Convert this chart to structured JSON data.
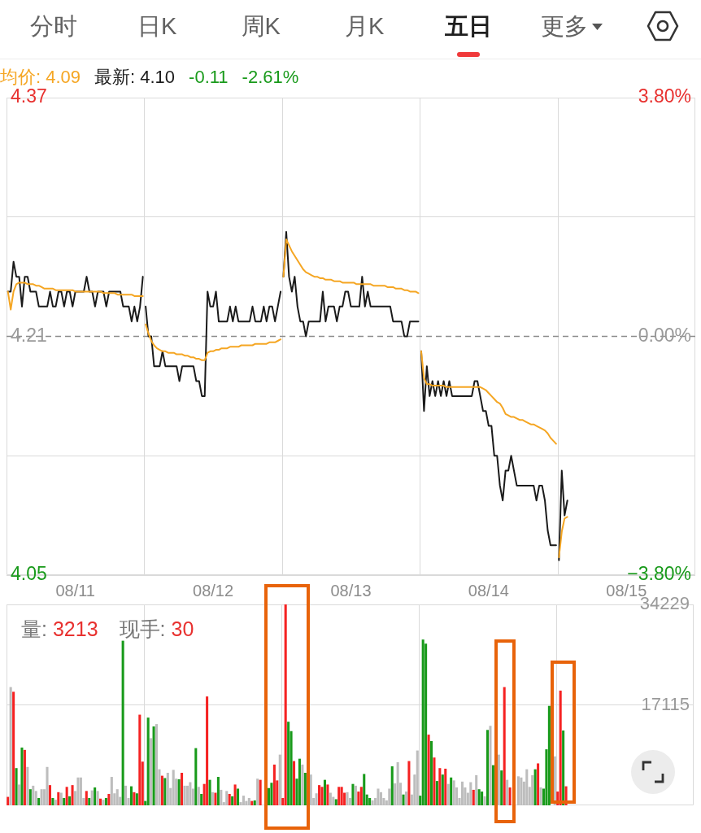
{
  "chart_data": [
    {
      "type": "other",
      "annotations": [
        "分时",
        "日K",
        "周K",
        "月K",
        "五日",
        "更多"
      ]
    },
    {
      "type": "line",
      "categories": [
        null,
        null,
        null,
        null,
        null,
        null,
        null,
        null,
        null,
        null,
        null,
        null,
        null,
        null,
        null,
        null,
        null,
        null,
        null,
        null,
        null,
        null,
        null,
        null,
        "08/11",
        null,
        null,
        null,
        null,
        null,
        null,
        null,
        null,
        null,
        null,
        null,
        null,
        null,
        null,
        null,
        null,
        null,
        null,
        null,
        null,
        null,
        null,
        null,
        null,
        null,
        null,
        null,
        null,
        null,
        null,
        null,
        null,
        null,
        null,
        null,
        null,
        null,
        null,
        null,
        null,
        null,
        null,
        null,
        null,
        null,
        null,
        null,
        null,
        "08/12",
        null,
        null,
        null,
        null,
        null,
        null,
        null,
        null,
        null,
        null,
        null,
        null,
        null,
        null,
        null,
        null,
        null,
        null,
        null,
        null,
        null,
        null,
        null,
        null,
        null,
        null,
        null,
        null,
        null,
        null,
        null,
        null,
        null,
        null,
        null,
        null,
        null,
        null,
        null,
        null,
        null,
        null,
        null,
        null,
        null,
        null,
        null,
        null,
        "08/13",
        null,
        null,
        null,
        null,
        null,
        null,
        null,
        null,
        null,
        null,
        null,
        null,
        null,
        null,
        null,
        null,
        null,
        null,
        null,
        null,
        null,
        null,
        null,
        null,
        null,
        null,
        null,
        null,
        null,
        null,
        null,
        null,
        null,
        null,
        null,
        null,
        null,
        null,
        null,
        null,
        null,
        null,
        null,
        null,
        null,
        null,
        null,
        null,
        "08/14",
        null,
        null,
        null,
        null,
        null,
        null,
        null,
        null,
        null,
        null,
        null,
        null,
        null,
        null,
        null,
        null,
        null,
        null,
        null,
        null,
        null,
        null,
        null,
        null,
        null,
        null,
        null,
        null,
        null,
        null,
        null,
        null,
        null,
        null,
        null,
        null,
        null,
        null,
        null,
        null,
        null,
        null,
        null,
        null,
        null,
        null,
        null,
        null,
        "08/15",
        null,
        null,
        null,
        null,
        null,
        null,
        null,
        null,
        null,
        null,
        null,
        null,
        null,
        null,
        null,
        null,
        null,
        null,
        null,
        null,
        null,
        null,
        null,
        null
      ],
      "series": [
        {
          "name": "均价: 4.09",
          "color": "#f5a623",
          "values": [
            4.24,
            4.228,
            4.24,
            4.245,
            4.246,
            4.246,
            4.246,
            4.245,
            4.245,
            4.245,
            4.244,
            4.244,
            4.243,
            4.242,
            4.242,
            4.242,
            4.242,
            4.241,
            4.241,
            4.241,
            4.241,
            4.241,
            4.241,
            4.241,
            4.24,
            4.24,
            4.24,
            4.24,
            4.24,
            4.24,
            4.24,
            4.24,
            4.24,
            4.24,
            4.239,
            4.239,
            4.239,
            4.239,
            4.239,
            4.238,
            4.238,
            4.238,
            4.238,
            4.238,
            4.238,
            4.237,
            4.237,
            4.237,
            4.237,
            4.218,
            4.212,
            4.207,
            4.204,
            4.202,
            4.201,
            4.2,
            4.2,
            4.199,
            4.199,
            4.199,
            4.198,
            4.198,
            4.198,
            4.197,
            4.197,
            4.196,
            4.196,
            4.195,
            4.195,
            4.194,
            4.194,
            4.199,
            4.2,
            4.2,
            4.201,
            4.201,
            4.202,
            4.202,
            4.202,
            4.203,
            4.203,
            4.203,
            4.203,
            4.204,
            4.204,
            4.204,
            4.204,
            4.204,
            4.205,
            4.205,
            4.205,
            4.205,
            4.205,
            4.206,
            4.206,
            4.206,
            4.207,
            4.208,
            4.25,
            4.275,
            4.271,
            4.267,
            4.264,
            4.261,
            4.258,
            4.255,
            4.253,
            4.252,
            4.251,
            4.25,
            4.25,
            4.249,
            4.249,
            4.248,
            4.248,
            4.248,
            4.247,
            4.247,
            4.247,
            4.246,
            4.246,
            4.246,
            4.246,
            4.246,
            4.245,
            4.245,
            4.245,
            4.245,
            4.245,
            4.245,
            4.244,
            4.244,
            4.244,
            4.244,
            4.244,
            4.243,
            4.243,
            4.243,
            4.242,
            4.242,
            4.242,
            4.241,
            4.241,
            4.24,
            4.24,
            4.24,
            4.239,
            4.2,
            4.182,
            4.178,
            4.178,
            4.177,
            4.177,
            4.177,
            4.177,
            4.177,
            4.176,
            4.176,
            4.176,
            4.176,
            4.176,
            4.176,
            4.176,
            4.176,
            4.176,
            4.176,
            4.176,
            4.176,
            4.176,
            4.175,
            4.174,
            4.172,
            4.17,
            4.168,
            4.166,
            4.165,
            4.162,
            4.158,
            4.157,
            4.156,
            4.156,
            4.155,
            4.154,
            4.154,
            4.153,
            4.152,
            4.151,
            4.151,
            4.15,
            4.149,
            4.148,
            4.147,
            4.145,
            4.142,
            4.14,
            4.138,
            4.062,
            4.079,
            4.088,
            4.089,
            null,
            null,
            null,
            null,
            null,
            null,
            null,
            null,
            null,
            null,
            null,
            null,
            null,
            null,
            null,
            null,
            null,
            null,
            null,
            null,
            null,
            null,
            null,
            null,
            null,
            null,
            null,
            null,
            null,
            null,
            null,
            null,
            null,
            null,
            null,
            null,
            null,
            null,
            null,
            null,
            null,
            null,
            null,
            null,
            null
          ]
        },
        {
          "name": "最新: 4.10",
          "color": "#1a1a1a",
          "values": [
            4.24,
            4.24,
            4.26,
            4.25,
            4.25,
            4.23,
            4.25,
            4.25,
            4.24,
            4.24,
            4.24,
            4.23,
            4.23,
            4.23,
            4.23,
            4.24,
            4.23,
            4.23,
            4.24,
            4.24,
            4.23,
            4.24,
            4.24,
            4.23,
            4.24,
            4.24,
            4.24,
            4.24,
            4.25,
            4.24,
            4.24,
            4.23,
            4.24,
            4.24,
            4.24,
            4.23,
            4.24,
            4.24,
            4.24,
            4.24,
            4.24,
            4.23,
            4.23,
            4.23,
            4.22,
            4.23,
            4.22,
            4.23,
            4.25,
            4.23,
            4.21,
            4.21,
            4.19,
            4.19,
            4.19,
            4.2,
            4.19,
            4.19,
            4.19,
            4.19,
            4.19,
            4.18,
            4.19,
            4.19,
            4.19,
            4.19,
            4.19,
            4.18,
            4.18,
            4.17,
            4.17,
            4.24,
            4.23,
            4.23,
            4.24,
            4.22,
            4.22,
            4.22,
            4.22,
            4.23,
            4.22,
            4.23,
            4.22,
            4.22,
            4.22,
            4.22,
            4.22,
            4.23,
            4.22,
            4.22,
            4.22,
            4.23,
            4.22,
            4.23,
            4.23,
            4.22,
            4.23,
            4.24,
            4.25,
            4.28,
            4.25,
            4.24,
            4.25,
            4.23,
            4.22,
            4.22,
            4.21,
            4.22,
            4.22,
            4.22,
            4.22,
            4.22,
            4.24,
            4.22,
            4.23,
            4.23,
            4.23,
            4.22,
            4.23,
            4.23,
            4.24,
            4.24,
            4.23,
            4.23,
            4.23,
            4.23,
            4.25,
            4.23,
            4.24,
            4.23,
            4.23,
            4.23,
            4.23,
            4.23,
            4.23,
            4.23,
            4.23,
            4.22,
            4.22,
            4.22,
            4.22,
            4.21,
            4.21,
            4.22,
            4.22,
            4.22,
            4.22,
            4.2,
            4.16,
            4.19,
            4.17,
            4.18,
            4.17,
            4.18,
            4.17,
            4.18,
            4.17,
            4.18,
            4.17,
            4.17,
            4.17,
            4.17,
            4.17,
            4.17,
            4.17,
            4.17,
            4.18,
            4.18,
            4.17,
            4.16,
            4.16,
            4.15,
            4.15,
            4.13,
            4.13,
            4.11,
            4.1,
            4.12,
            4.12,
            4.13,
            4.12,
            4.11,
            4.11,
            4.11,
            4.11,
            4.11,
            4.11,
            4.11,
            4.1,
            4.11,
            4.11,
            4.1,
            4.08,
            4.07,
            4.07,
            4.07,
            4.06,
            4.12,
            4.09,
            4.1,
            null,
            null,
            null,
            null,
            null,
            null,
            null,
            null,
            null,
            null,
            null,
            null,
            null,
            null,
            null,
            null,
            null,
            null,
            null,
            null,
            null,
            null,
            null,
            null,
            null,
            null,
            null,
            null,
            null,
            null,
            null,
            null,
            null,
            null,
            null,
            null,
            null,
            null,
            null,
            null,
            null,
            null,
            null,
            null,
            null
          ]
        }
      ],
      "ylim": [
        4.05,
        4.37
      ],
      "yticks": [
        4.05,
        {
          "value": 4.13,
          "label": null
        },
        4.21,
        {
          "value": 4.29,
          "label": null
        },
        4.37
      ],
      "y2lim": [
        -3.8,
        3.8
      ],
      "y2ticks": [
        {
          "value": -3.8,
          "label": "−3.80%"
        },
        {
          "value": 0,
          "label": "0.00%"
        },
        {
          "value": 3.8,
          "label": "3.80%"
        }
      ],
      "ref_lines": [
        {
          "axis": "y",
          "value": 4.21,
          "line_style": "dashed",
          "color": "#8c8c8c"
        }
      ],
      "annotations": [
        "-0.11",
        "-2.61%"
      ],
      "legend": "top left",
      "grid": true
    },
    {
      "type": "bar",
      "categories": [
        null,
        null,
        null,
        null,
        null,
        null,
        null,
        null,
        null,
        null,
        null,
        null,
        null,
        null,
        null,
        null,
        null,
        null,
        null,
        null,
        null,
        null,
        null,
        null,
        null,
        null,
        null,
        null,
        null,
        null,
        null,
        null,
        null,
        null,
        null,
        null,
        null,
        null,
        null,
        null,
        null,
        null,
        null,
        null,
        null,
        null,
        null,
        null,
        null,
        null,
        null,
        null,
        null,
        null,
        null,
        null,
        null,
        null,
        null,
        null,
        null,
        null,
        null,
        null,
        null,
        null,
        null,
        null,
        null,
        null,
        null,
        null,
        null,
        null,
        null,
        null,
        null,
        null,
        null,
        null,
        null,
        null,
        null,
        null,
        null,
        null,
        null,
        null,
        null,
        null,
        null,
        null,
        null,
        null,
        null,
        null,
        null,
        null,
        null,
        null,
        null,
        null,
        null,
        null,
        null,
        null,
        null,
        null,
        null,
        null,
        null,
        null,
        null,
        null,
        null,
        null,
        null,
        null,
        null,
        null,
        null,
        null,
        null,
        null,
        null,
        null,
        null,
        null,
        null,
        null,
        null,
        null,
        null,
        null,
        null,
        null,
        null,
        null,
        null,
        null,
        null,
        null,
        null,
        null,
        null,
        null,
        null,
        null,
        null,
        null,
        null,
        null,
        null,
        null,
        null,
        null,
        null,
        null,
        null,
        null,
        null,
        null,
        null,
        null,
        null,
        null,
        null,
        null,
        null,
        null,
        null,
        null,
        null,
        null,
        null,
        null,
        null,
        null,
        null,
        null,
        null,
        null,
        null,
        null,
        null,
        null,
        null,
        null,
        null,
        null,
        null,
        null,
        null,
        null,
        null,
        null,
        null,
        null,
        null,
        null,
        null,
        null,
        null,
        null,
        null,
        null,
        null,
        null,
        null,
        null,
        null,
        null,
        null,
        null,
        null,
        null,
        null,
        null,
        null,
        null,
        null,
        null,
        null,
        null,
        null,
        null,
        null,
        null,
        null,
        null,
        null,
        null,
        null,
        null,
        null,
        null,
        null,
        null,
        null,
        null,
        null,
        null,
        null,
        null,
        null
      ],
      "series": [
        {
          "values": [
            1400,
            20100,
            19300,
            6300,
            3500,
            9800,
            9400,
            6500,
            2700,
            3300,
            2400,
            1200,
            2700,
            2700,
            6500,
            3400,
            1200,
            900,
            2200,
            2100,
            1200,
            3100,
            1500,
            3400,
            2400,
            4700,
            4700,
            1200,
            2400,
            1200,
            2500,
            3000,
            2400,
            1100,
            900,
            1200,
            1900,
            4800,
            2000,
            2700,
            1400,
            28000,
            3300,
            1200,
            3200,
            2200,
            2000,
            15400,
            7400,
            700,
            14900,
            11400,
            13400,
            13800,
            6100,
            5000,
            4600,
            5500,
            2900,
            6000,
            4500,
            4400,
            5500,
            3300,
            3300,
            3900,
            2800,
            9700,
            3100,
            1900,
            3600,
            18500,
            4300,
            2200,
            2100,
            4800,
            2600,
            500,
            2400,
            1900,
            1500,
            3500,
            2800,
            500,
            1600,
            700,
            1200,
            700,
            800,
            4500,
            4300,
            null,
            null,
            2900,
            3800,
            6900,
            4200,
            8600,
            1200,
            34200,
            14200,
            12600,
            7500,
            4500,
            7900,
            6900,
            5500,
            null,
            5200,
            1200,
            2000,
            3400,
            3100,
            4300,
            3500,
            2100,
            1400,
            1000,
            3100,
            3100,
            2100,
            2200,
            1200,
            3600,
            3300,
            2300,
            3100,
            5300,
            1800,
            1200,
            800,
            1200,
            2800,
            2200,
            1200,
            800,
            2800,
            6600,
            3700,
            7300,
            3800,
            1800,
            2300,
            7500,
            1800,
            5200,
            9300,
            1600,
            28200,
            27500,
            12000,
            10900,
            8100,
            4100,
            6300,
            5200,
            6200,
            3600,
            4700,
            4200,
            3000,
            1200,
            4000,
            3000,
            2100,
            3900,
            2600,
            5100,
            2700,
            2300,
            1500,
            12800,
            13500,
            6800,
            null,
            8600,
            5900,
            20100,
            4300,
            3000,
            null,
            null,
            4900,
            4700,
            4000,
            6100,
            3100,
            5100,
            6100,
            7100,
            3000,
            2800,
            9500,
            16900,
            null,
            8300,
            2300,
            19500,
            12700,
            3200,
            null,
            null,
            null,
            null,
            null,
            null,
            null,
            null,
            null,
            null,
            null,
            null,
            null,
            null,
            null,
            null,
            null,
            null,
            null,
            null,
            null,
            null,
            null,
            null,
            null,
            null,
            null,
            null,
            null,
            null,
            null,
            null,
            null,
            null,
            null,
            null,
            null,
            null,
            null,
            null,
            null,
            null,
            null,
            null,
            null
          ],
          "colors": [
            "#f52222",
            "#bdbdbd",
            "#f52222",
            "#189a1a",
            "#bdbdbd",
            "#189a1a",
            "#f52222",
            "#bdbdbd",
            "#189a1a",
            "#bdbdbd",
            "#bdbdbd",
            "#189a1a",
            "#bdbdbd",
            "#bdbdbd",
            "#bdbdbd",
            "#f52222",
            "#189a1a",
            "#bdbdbd",
            "#f52222",
            "#bdbdbd",
            "#189a1a",
            "#f52222",
            "#189a1a",
            "#f52222",
            "#bdbdbd",
            "#bdbdbd",
            "#bdbdbd",
            "#bdbdbd",
            "#f52222",
            "#189a1a",
            "#bdbdbd",
            "#189a1a",
            "#bdbdbd",
            "#f52222",
            "#bdbdbd",
            "#189a1a",
            "#f52222",
            "#bdbdbd",
            "#bdbdbd",
            "#bdbdbd",
            "#bdbdbd",
            "#189a1a",
            "#bdbdbd",
            "#bdbdbd",
            "#189a1a",
            "#f52222",
            "#189a1a",
            "#f52222",
            "#f52222",
            "#189a1a",
            "#189a1a",
            "#bdbdbd",
            "#189a1a",
            "#bdbdbd",
            "#bdbdbd",
            "#f52222",
            "#189a1a",
            "#bdbdbd",
            "#bdbdbd",
            "#bdbdbd",
            "#bdbdbd",
            "#189a1a",
            "#f52222",
            "#bdbdbd",
            "#bdbdbd",
            "#bdbdbd",
            "#bdbdbd",
            "#189a1a",
            "#bdbdbd",
            "#189a1a",
            "#f52222",
            "#f52222",
            "#189a1a",
            "#bdbdbd",
            "#f52222",
            "#189a1a",
            "#bdbdbd",
            "#bdbdbd",
            "#bdbdbd",
            "#f52222",
            "#189a1a",
            "#f52222",
            "#189a1a",
            "#bdbdbd",
            "#bdbdbd",
            "#bdbdbd",
            "#bdbdbd",
            "#f52222",
            "#189a1a",
            "#bdbdbd",
            "#f52222",
            null,
            null,
            "#189a1a",
            "#189a1a",
            "#f52222",
            "#f52222",
            "#bdbdbd",
            "#f52222",
            "#f52222",
            "#189a1a",
            "#189a1a",
            "#f52222",
            "#189a1a",
            "#189a1a",
            "#bdbdbd",
            "#189a1a",
            null,
            "#bdbdbd",
            "#bdbdbd",
            "#bdbdbd",
            "#f52222",
            "#f52222",
            "#189a1a",
            "#f52222",
            "#bdbdbd",
            "#bdbdbd",
            "#189a1a",
            "#f52222",
            "#f52222",
            "#f52222",
            "#bdbdbd",
            "#bdbdbd",
            "#189a1a",
            "#bdbdbd",
            "#f52222",
            "#f52222",
            "#189a1a",
            "#189a1a",
            "#189a1a",
            "#bdbdbd",
            "#bdbdbd",
            "#bdbdbd",
            "#bdbdbd",
            "#bdbdbd",
            "#bdbdbd",
            "#bdbdbd",
            "#189a1a",
            "#bdbdbd",
            "#bdbdbd",
            "#bdbdbd",
            "#189a1a",
            "#bdbdbd",
            "#f52222",
            "#bdbdbd",
            "#bdbdbd",
            "#bdbdbd",
            "#189a1a",
            "#189a1a",
            "#189a1a",
            "#f52222",
            "#189a1a",
            "#f52222",
            "#189a1a",
            "#f52222",
            "#189a1a",
            "#f52222",
            "#bdbdbd",
            "#189a1a",
            "#bdbdbd",
            "#bdbdbd",
            "#bdbdbd",
            "#bdbdbd",
            "#bdbdbd",
            "#bdbdbd",
            "#bdbdbd",
            "#f52222",
            "#bdbdbd",
            "#189a1a",
            "#189a1a",
            "#bdbdbd",
            "#189a1a",
            "#bdbdbd",
            "#189a1a",
            null,
            "#bdbdbd",
            "#189a1a",
            "#f52222",
            "#bdbdbd",
            "#f52222",
            null,
            null,
            "#bdbdbd",
            "#bdbdbd",
            "#bdbdbd",
            "#bdbdbd",
            "#bdbdbd",
            "#bdbdbd",
            "#189a1a",
            "#f52222",
            "#bdbdbd",
            "#189a1a",
            "#189a1a",
            "#189a1a",
            null,
            "#bdbdbd",
            "#f52222",
            "#f52222",
            "#189a1a",
            "#f52222",
            null,
            null,
            null,
            null,
            null,
            null,
            null,
            null,
            null,
            null,
            null,
            null,
            null,
            null,
            null,
            null,
            null,
            null,
            null,
            null,
            null,
            null,
            null,
            null,
            null,
            null,
            null,
            null,
            null,
            null,
            null,
            null,
            null,
            null,
            null,
            null,
            null,
            null,
            null,
            null,
            null,
            null,
            null,
            null,
            null
          ]
        }
      ],
      "ylim": [
        0,
        34229
      ],
      "yticks": [
        17115,
        34229
      ],
      "annotations": [
        "量:",
        "3213",
        "现手:",
        "30"
      ],
      "grid": true,
      "tick_labels": "y"
    }
  ]
}
